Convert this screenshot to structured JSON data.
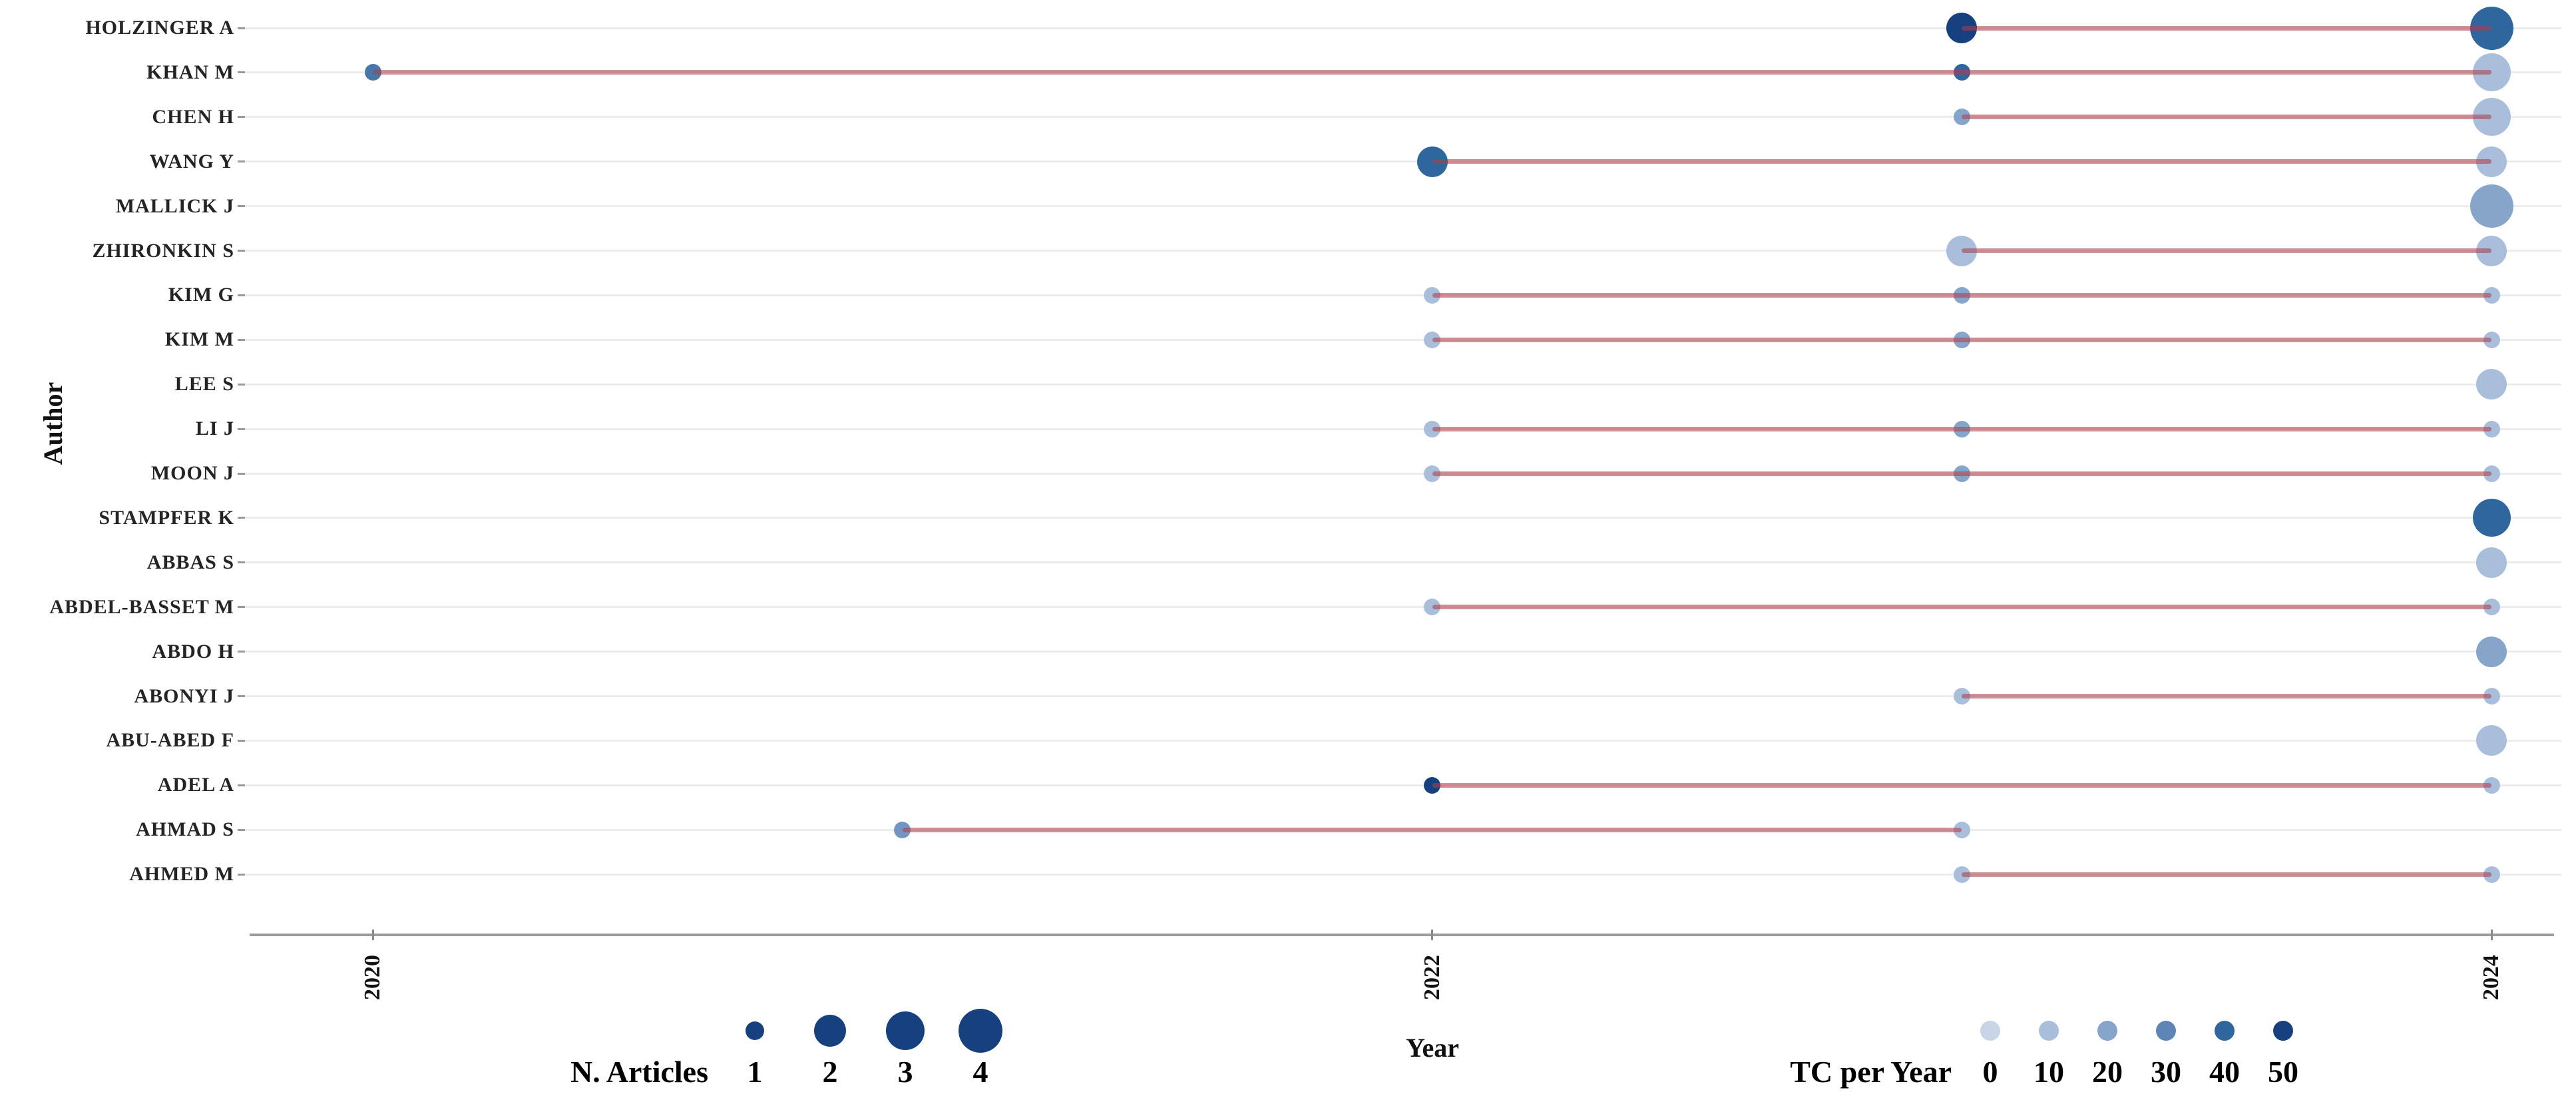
{
  "y_axis": {
    "label": "Author"
  },
  "x_axis": {
    "label": "Year",
    "ticks": [
      "2020",
      "2022",
      "2024"
    ]
  },
  "legend_articles": {
    "label": "N. Articles",
    "sizes": [
      "1",
      "2",
      "3",
      "4"
    ]
  },
  "legend_tc": {
    "label": "TC per Year",
    "values": [
      "0",
      "10",
      "20",
      "30",
      "40",
      "50"
    ]
  },
  "colors": {
    "legend_bubble_navy": "#16417e",
    "timeline_pink": "#d99296",
    "gridline": "#ececec",
    "axis_line": "#9c9c9c",
    "tc_scale": [
      [
        "0",
        "#c9d5e6"
      ],
      [
        "10",
        "#a8bedb"
      ],
      [
        "20",
        "#87a4ca"
      ],
      [
        "30",
        "#5f85b7"
      ],
      [
        "40",
        "#2f669e"
      ],
      [
        "50",
        "#16417e"
      ]
    ]
  },
  "chart_data": {
    "type": "scatter",
    "title": "",
    "xlabel": "Year",
    "ylabel": "Author",
    "x_ticks": [
      2020,
      2022,
      2024
    ],
    "x_range": [
      2019.5,
      2024.3
    ],
    "grid": "horizontal",
    "size_legend": {
      "label": "N. Articles",
      "values": [
        1,
        2,
        3,
        4
      ]
    },
    "color_legend": {
      "label": "TC per Year",
      "values": [
        0,
        10,
        20,
        30,
        40,
        50
      ]
    },
    "series": [
      {
        "author": "HOLZINGER A",
        "points": [
          {
            "year": 2023,
            "n_articles": 2,
            "tc_per_year": 50
          },
          {
            "year": 2024,
            "n_articles": 4,
            "tc_per_year": 40
          }
        ]
      },
      {
        "author": "KHAN M",
        "points": [
          {
            "year": 2020,
            "n_articles": 1,
            "tc_per_year": 35
          },
          {
            "year": 2023,
            "n_articles": 1,
            "tc_per_year": 40
          },
          {
            "year": 2024,
            "n_articles": 3,
            "tc_per_year": 10
          }
        ]
      },
      {
        "author": "CHEN H",
        "points": [
          {
            "year": 2023,
            "n_articles": 1,
            "tc_per_year": 20
          },
          {
            "year": 2024,
            "n_articles": 3,
            "tc_per_year": 10
          }
        ]
      },
      {
        "author": "WANG Y",
        "points": [
          {
            "year": 2022,
            "n_articles": 2,
            "tc_per_year": 40
          },
          {
            "year": 2024,
            "n_articles": 2,
            "tc_per_year": 10
          }
        ]
      },
      {
        "author": "MALLICK J",
        "points": [
          {
            "year": 2024,
            "n_articles": 4,
            "tc_per_year": 20
          }
        ]
      },
      {
        "author": "ZHIRONKIN S",
        "points": [
          {
            "year": 2023,
            "n_articles": 2,
            "tc_per_year": 10
          },
          {
            "year": 2024,
            "n_articles": 2,
            "tc_per_year": 10
          }
        ]
      },
      {
        "author": "KIM G",
        "points": [
          {
            "year": 2022,
            "n_articles": 1,
            "tc_per_year": 10
          },
          {
            "year": 2023,
            "n_articles": 1,
            "tc_per_year": 20
          },
          {
            "year": 2024,
            "n_articles": 1,
            "tc_per_year": 10
          }
        ]
      },
      {
        "author": "KIM M",
        "points": [
          {
            "year": 2022,
            "n_articles": 1,
            "tc_per_year": 10
          },
          {
            "year": 2023,
            "n_articles": 1,
            "tc_per_year": 20
          },
          {
            "year": 2024,
            "n_articles": 1,
            "tc_per_year": 10
          }
        ]
      },
      {
        "author": "LEE S",
        "points": [
          {
            "year": 2024,
            "n_articles": 2,
            "tc_per_year": 10
          }
        ]
      },
      {
        "author": "LI J",
        "points": [
          {
            "year": 2022,
            "n_articles": 1,
            "tc_per_year": 10
          },
          {
            "year": 2023,
            "n_articles": 1,
            "tc_per_year": 20
          },
          {
            "year": 2024,
            "n_articles": 1,
            "tc_per_year": 10
          }
        ]
      },
      {
        "author": "MOON J",
        "points": [
          {
            "year": 2022,
            "n_articles": 1,
            "tc_per_year": 10
          },
          {
            "year": 2023,
            "n_articles": 1,
            "tc_per_year": 20
          },
          {
            "year": 2024,
            "n_articles": 1,
            "tc_per_year": 10
          }
        ]
      },
      {
        "author": "STAMPFER K",
        "points": [
          {
            "year": 2024,
            "n_articles": 3,
            "tc_per_year": 40
          }
        ]
      },
      {
        "author": "ABBAS S",
        "points": [
          {
            "year": 2024,
            "n_articles": 2,
            "tc_per_year": 10
          }
        ]
      },
      {
        "author": "ABDEL-BASSET M",
        "points": [
          {
            "year": 2022,
            "n_articles": 1,
            "tc_per_year": 10
          },
          {
            "year": 2024,
            "n_articles": 1,
            "tc_per_year": 10
          }
        ]
      },
      {
        "author": "ABDO H",
        "points": [
          {
            "year": 2024,
            "n_articles": 2,
            "tc_per_year": 20
          }
        ]
      },
      {
        "author": "ABONYI J",
        "points": [
          {
            "year": 2023,
            "n_articles": 1,
            "tc_per_year": 10
          },
          {
            "year": 2024,
            "n_articles": 1,
            "tc_per_year": 10
          }
        ]
      },
      {
        "author": "ABU-ABED F",
        "points": [
          {
            "year": 2024,
            "n_articles": 2,
            "tc_per_year": 10
          }
        ]
      },
      {
        "author": "ADEL A",
        "points": [
          {
            "year": 2022,
            "n_articles": 1,
            "tc_per_year": 50
          },
          {
            "year": 2024,
            "n_articles": 1,
            "tc_per_year": 10
          }
        ]
      },
      {
        "author": "AHMAD S",
        "points": [
          {
            "year": 2021,
            "n_articles": 1,
            "tc_per_year": 25
          },
          {
            "year": 2023,
            "n_articles": 1,
            "tc_per_year": 10
          }
        ]
      },
      {
        "author": "AHMED M",
        "points": [
          {
            "year": 2023,
            "n_articles": 1,
            "tc_per_year": 10
          },
          {
            "year": 2024,
            "n_articles": 1,
            "tc_per_year": 10
          }
        ]
      }
    ]
  }
}
